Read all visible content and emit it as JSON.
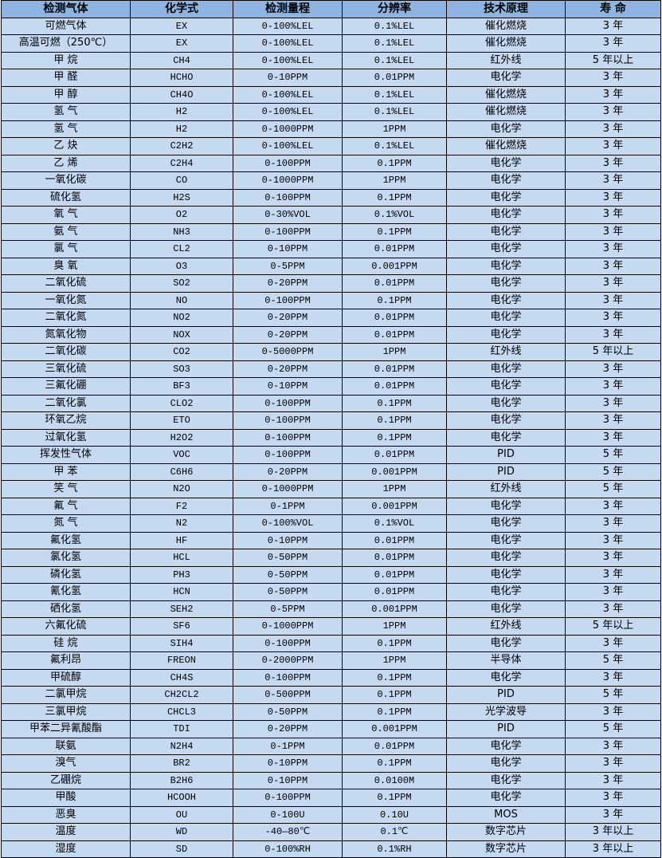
{
  "table": {
    "headers": [
      "检测气体",
      "化学式",
      "检测量程",
      "分辨率",
      "技术原理",
      "寿 命"
    ],
    "rows": [
      [
        "可燃气体",
        "EX",
        "0-100%LEL",
        "0.1%LEL",
        "催化燃烧",
        "3 年"
      ],
      [
        "高温可燃（250℃）",
        "EX",
        "0-100%LEL",
        "0.1%LEL",
        "催化燃烧",
        "3 年"
      ],
      [
        "甲 烷",
        "CH4",
        "0-100%LEL",
        "0.1%LEL",
        "红外线",
        "5 年以上"
      ],
      [
        "甲 醛",
        "HCHO",
        "0-10PPM",
        "0.01PPM",
        "电化学",
        "3 年"
      ],
      [
        "甲 醇",
        "CH4O",
        "0-100%LEL",
        "0.1%LEL",
        "催化燃烧",
        "3 年"
      ],
      [
        "氢 气",
        "H2",
        "0-100%LEL",
        "0.1%LEL",
        "催化燃烧",
        "3 年"
      ],
      [
        "氢 气",
        "H2",
        "0-1000PPM",
        "1PPM",
        "电化学",
        "3 年"
      ],
      [
        "乙 炔",
        "C2H2",
        "0-100%LEL",
        "0.1%LEL",
        "催化燃烧",
        "3 年"
      ],
      [
        "乙 烯",
        "C2H4",
        "0-100PPM",
        "0.1PPM",
        "电化学",
        "3 年"
      ],
      [
        "一氧化碳",
        "CO",
        "0-1000PPM",
        "1PPM",
        "电化学",
        "3 年"
      ],
      [
        "硫化氢",
        "H2S",
        "0-100PPM",
        "0.1PPM",
        "电化学",
        "3 年"
      ],
      [
        "氧 气",
        "O2",
        "0-30%VOL",
        "0.1%VOL",
        "电化学",
        "3 年"
      ],
      [
        "氨 气",
        "NH3",
        "0-100PPM",
        "0.1PPM",
        "电化学",
        "3 年"
      ],
      [
        "氯 气",
        "CL2",
        "0-10PPM",
        "0.01PPM",
        "电化学",
        "3 年"
      ],
      [
        "臭 氧",
        "O3",
        "0-5PPM",
        "0.001PPM",
        "电化学",
        "3 年"
      ],
      [
        "二氧化硫",
        "SO2",
        "0-20PPM",
        "0.01PPM",
        "电化学",
        "3 年"
      ],
      [
        "一氧化氮",
        "NO",
        "0-100PPM",
        "0.1PPM",
        "电化学",
        "3 年"
      ],
      [
        "二氧化氮",
        "NO2",
        "0-20PPM",
        "0.01PPM",
        "电化学",
        "3 年"
      ],
      [
        "氮氧化物",
        "NOX",
        "0-20PPM",
        "0.01PPM",
        "电化学",
        "3 年"
      ],
      [
        "二氧化碳",
        "CO2",
        "0-5000PPM",
        "1PPM",
        "红外线",
        "5 年以上"
      ],
      [
        "三氧化硫",
        "SO3",
        "0-20PPM",
        "0.01PPM",
        "电化学",
        "3 年"
      ],
      [
        "三氟化硼",
        "BF3",
        "0-10PPM",
        "0.01PPM",
        "电化学",
        "3 年"
      ],
      [
        "二氧化氯",
        "CLO2",
        "0-100PPM",
        "0.1PPM",
        "电化学",
        "3 年"
      ],
      [
        "环氧乙烷",
        "ETO",
        "0-100PPM",
        "0.1PPM",
        "电化学",
        "3 年"
      ],
      [
        "过氧化氢",
        "H2O2",
        "0-100PPM",
        "0.1PPM",
        "电化学",
        "3 年"
      ],
      [
        "挥发性气体",
        "VOC",
        "0-100PPM",
        "0.01PPM",
        "PID",
        "5 年"
      ],
      [
        "甲 苯",
        "C6H6",
        "0-20PPM",
        "0.001PPM",
        "PID",
        "5 年"
      ],
      [
        "笑 气",
        "N2O",
        "0-1000PPM",
        "1PPM",
        "红外线",
        "5 年"
      ],
      [
        "氟 气",
        "F2",
        "0-1PPM",
        "0.001PPM",
        "电化学",
        "3 年"
      ],
      [
        "氮 气",
        "N2",
        "0-100%VOL",
        "0.1%VOL",
        "电化学",
        "3 年"
      ],
      [
        "氟化氢",
        "HF",
        "0-10PPM",
        "0.01PPM",
        "电化学",
        "3 年"
      ],
      [
        "氯化氢",
        "HCL",
        "0-50PPM",
        "0.01PPM",
        "电化学",
        "3 年"
      ],
      [
        "磷化氢",
        "PH3",
        "0-50PPM",
        "0.01PPM",
        "电化学",
        "3 年"
      ],
      [
        "氰化氢",
        "HCN",
        "0-50PPM",
        "0.01PPM",
        "电化学",
        "3 年"
      ],
      [
        "硒化氢",
        "SEH2",
        "0-5PPM",
        "0.001PPM",
        "电化学",
        "3 年"
      ],
      [
        "六氟化硫",
        "SF6",
        "0-1000PPM",
        "1PPM",
        "红外线",
        "5 年以上"
      ],
      [
        "硅 烷",
        "SIH4",
        "0-100PPM",
        "0.1PPM",
        "电化学",
        "3 年"
      ],
      [
        "氟利昂",
        "FREON",
        "0-2000PPM",
        "1PPM",
        "半导体",
        "5 年"
      ],
      [
        "甲硫醇",
        "CH4S",
        "0-100PPM",
        "0.1PPM",
        "电化学",
        "3 年"
      ],
      [
        "二氯甲烷",
        "CH2CL2",
        "0-500PPM",
        "0.1PPM",
        "PID",
        "5 年"
      ],
      [
        "三氯甲烷",
        "CHCL3",
        "0-50PPM",
        "0.1PPM",
        "光学波导",
        "3 年"
      ],
      [
        "甲苯二异氰酸酯",
        "TDI",
        "0-20PPM",
        "0.001PPM",
        "PID",
        "5 年"
      ],
      [
        "联氨",
        "N2H4",
        "0-1PPM",
        "0.01PPM",
        "电化学",
        "3 年"
      ],
      [
        "溴气",
        "BR2",
        "0-10PPM",
        "0.1PPM",
        "电化学",
        "3 年"
      ],
      [
        "乙硼烷",
        "B2H6",
        "0-10PPM",
        "0.0100M",
        "电化学",
        "3 年"
      ],
      [
        "甲酸",
        "HCOOH",
        "0-100PPM",
        "0.1PPM",
        "电化学",
        "3 年"
      ],
      [
        "恶臭",
        "OU",
        "0-100U",
        "0.10U",
        "MOS",
        "3 年"
      ],
      [
        "温度",
        "WD",
        "-40—80℃",
        "0.1℃",
        "数字芯片",
        "3 年以上"
      ],
      [
        "湿度",
        "SD",
        "0-100%RH",
        "0.1%RH",
        "数字芯片",
        "3 年以上"
      ]
    ]
  },
  "colors": {
    "header_bg": "#8db4e2",
    "cell_bg": "#c5d9f1",
    "border": "#000000"
  }
}
